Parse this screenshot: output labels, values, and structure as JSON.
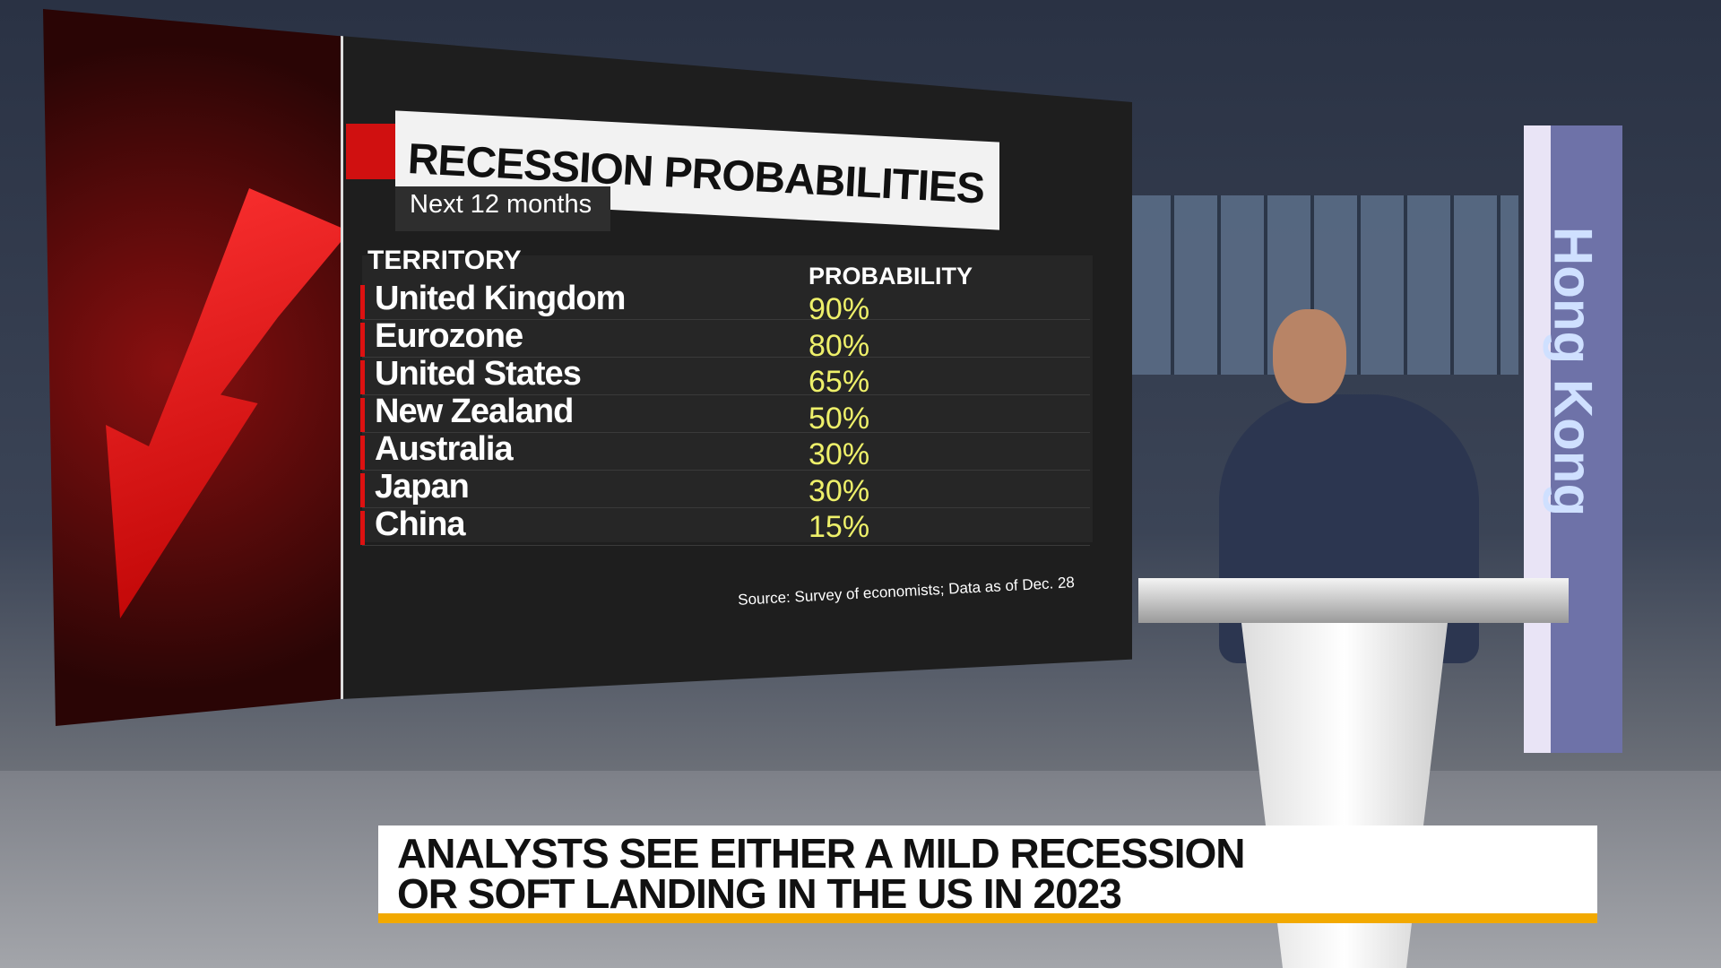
{
  "title": "RECESSION PROBABILITIES",
  "subtitle": "Next 12 months",
  "table": {
    "headers": [
      "TERRITORY",
      "PROBABILITY"
    ],
    "rows": [
      [
        "United Kingdom",
        "90%"
      ],
      [
        "Eurozone",
        "80%"
      ],
      [
        "United States",
        "65%"
      ],
      [
        "New Zealand",
        "50%"
      ],
      [
        "Australia",
        "30%"
      ],
      [
        "Japan",
        "30%"
      ],
      [
        "China",
        "15%"
      ]
    ]
  },
  "source": "Source: Survey of economists; Data as of Dec. 28",
  "sign": "Hong Kong",
  "headline": [
    "ANALYSTS SEE EITHER A MILD RECESSION",
    "OR SOFT LANDING IN THE US IN 2023"
  ]
}
